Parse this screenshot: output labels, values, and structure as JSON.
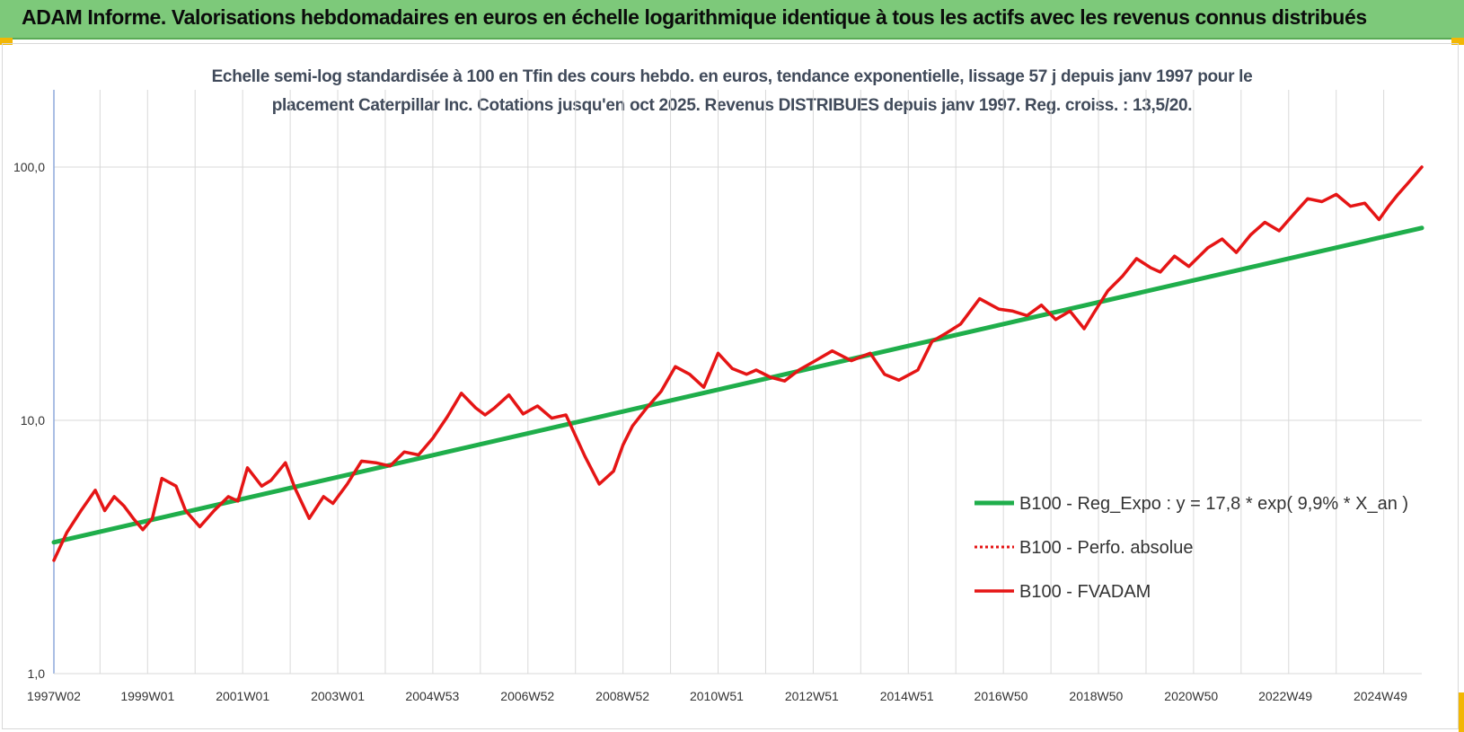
{
  "banner": {
    "title": "ADAM Informe. Valorisations hebdomadaires en euros en échelle logarithmique identique à tous les actifs avec les revenus connus distribués"
  },
  "colors": {
    "banner": "#7dc97a",
    "trend": "#1fae4b",
    "fvadam": "#e51515",
    "perfo": "#e51515",
    "grid": "#d9d9d9",
    "axis": "#8ea9db"
  },
  "chart_data": {
    "type": "line",
    "title_line1": "Echelle semi-log standardisée à 100 en Tfin des cours hebdo. en euros, tendance exponentielle, lissage 57 j depuis janv 1997 pour le",
    "title_line2": "placement Caterpillar Inc. Cotations jusqu'en oct 2025. Revenus DISTRIBUES depuis janv 1997. Reg. croiss. : 13,5/20.",
    "y_scale": "log",
    "ylim": [
      1,
      200
    ],
    "y_ticks": [
      {
        "value": 1,
        "label": "1,0"
      },
      {
        "value": 10,
        "label": "10,0"
      },
      {
        "value": 100,
        "label": "100,0"
      }
    ],
    "xlim": [
      1997.03,
      2025.8
    ],
    "x_ticks": [
      {
        "value": 1997.03,
        "label": "1997W02"
      },
      {
        "value": 1999.0,
        "label": "1999W01"
      },
      {
        "value": 2001.0,
        "label": "2001W01"
      },
      {
        "value": 2003.0,
        "label": "2003W01"
      },
      {
        "value": 2004.99,
        "label": "2004W53"
      },
      {
        "value": 2006.99,
        "label": "2006W52"
      },
      {
        "value": 2008.99,
        "label": "2008W52"
      },
      {
        "value": 2010.97,
        "label": "2010W51"
      },
      {
        "value": 2012.97,
        "label": "2012W51"
      },
      {
        "value": 2014.97,
        "label": "2014W51"
      },
      {
        "value": 2016.95,
        "label": "2016W50"
      },
      {
        "value": 2018.95,
        "label": "2018W50"
      },
      {
        "value": 2020.95,
        "label": "2020W50"
      },
      {
        "value": 2022.93,
        "label": "2022W49"
      },
      {
        "value": 2024.93,
        "label": "2024W49"
      }
    ],
    "grid": true,
    "legend_position": "bottom-right",
    "series": [
      {
        "name": "B100 - Reg_Expo : y = 17,8 * exp( 9,9% *  X_an )",
        "style": "solid",
        "x": [
          1997.03,
          2025.8
        ],
        "y": [
          3.3,
          57.5
        ]
      },
      {
        "name": "B100 - Perfo. absolue",
        "style": "dotted",
        "x": [],
        "y": []
      },
      {
        "name": "B100 - FVADAM",
        "style": "solid",
        "x": [
          1997.03,
          1997.3,
          1997.6,
          1997.9,
          1998.1,
          1998.3,
          1998.5,
          1998.7,
          1998.9,
          1999.1,
          1999.3,
          1999.6,
          1999.8,
          2000.1,
          2000.4,
          2000.7,
          2000.9,
          2001.1,
          2001.4,
          2001.6,
          2001.9,
          2002.1,
          2002.4,
          2002.7,
          2002.9,
          2003.2,
          2003.5,
          2003.8,
          2004.1,
          2004.4,
          2004.7,
          2005.0,
          2005.3,
          2005.6,
          2005.9,
          2006.1,
          2006.3,
          2006.6,
          2006.9,
          2007.2,
          2007.5,
          2007.8,
          2008.2,
          2008.5,
          2008.8,
          2009.0,
          2009.2,
          2009.5,
          2009.8,
          2010.1,
          2010.4,
          2010.7,
          2011.0,
          2011.3,
          2011.6,
          2011.8,
          2012.1,
          2012.4,
          2012.7,
          2013.0,
          2013.4,
          2013.8,
          2014.2,
          2014.5,
          2014.8,
          2015.2,
          2015.5,
          2015.8,
          2016.1,
          2016.5,
          2016.9,
          2017.2,
          2017.5,
          2017.8,
          2018.1,
          2018.4,
          2018.7,
          2018.9,
          2019.2,
          2019.5,
          2019.8,
          2020.1,
          2020.3,
          2020.6,
          2020.9,
          2021.3,
          2021.6,
          2021.9,
          2022.2,
          2022.5,
          2022.8,
          2023.1,
          2023.4,
          2023.7,
          2024.0,
          2024.3,
          2024.6,
          2024.9,
          2025.1,
          2025.3,
          2025.5,
          2025.8
        ],
        "y": [
          2.8,
          3.6,
          4.4,
          5.3,
          4.4,
          5.0,
          4.6,
          4.1,
          3.7,
          4.1,
          5.9,
          5.5,
          4.4,
          3.8,
          4.4,
          5.0,
          4.8,
          6.5,
          5.5,
          5.8,
          6.8,
          5.4,
          4.1,
          5.0,
          4.7,
          5.6,
          6.9,
          6.8,
          6.6,
          7.5,
          7.3,
          8.5,
          10.3,
          12.8,
          11.2,
          10.5,
          11.2,
          12.6,
          10.6,
          11.4,
          10.2,
          10.5,
          7.2,
          5.6,
          6.3,
          8.0,
          9.5,
          11.2,
          13.0,
          16.3,
          15.2,
          13.5,
          18.4,
          16.0,
          15.2,
          15.8,
          14.8,
          14.3,
          15.8,
          17.0,
          18.8,
          17.2,
          18.4,
          15.2,
          14.4,
          15.8,
          20.5,
          22.1,
          24.0,
          30.2,
          27.5,
          27.0,
          25.9,
          28.5,
          25.0,
          27.0,
          23.0,
          26.5,
          32.5,
          37.0,
          43.5,
          40.0,
          38.5,
          44.5,
          40.5,
          48.0,
          52.0,
          46.0,
          54.0,
          60.5,
          56.0,
          65.0,
          75.0,
          73.0,
          78.0,
          70.0,
          72.0,
          62.0,
          70.0,
          78.0,
          86.0,
          100.0
        ]
      }
    ]
  }
}
